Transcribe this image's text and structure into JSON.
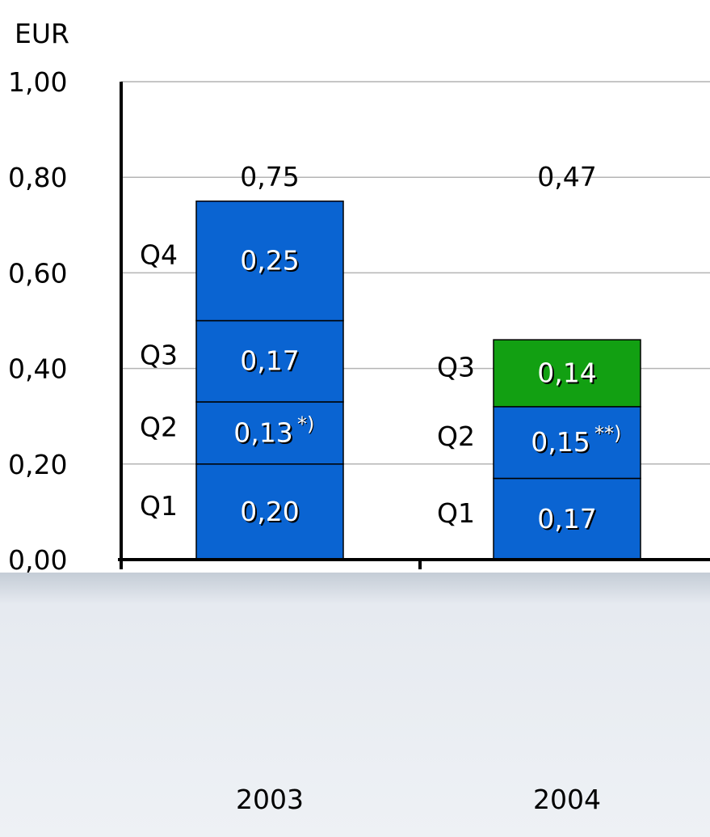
{
  "chart_data": {
    "type": "bar",
    "stacked": true,
    "unit_label": "EUR",
    "ylim": [
      0,
      1.0
    ],
    "y_ticks": [
      "0,00",
      "0,20",
      "0,40",
      "0,60",
      "0,80",
      "1,00"
    ],
    "y_tick_values": [
      0,
      0.2,
      0.4,
      0.6,
      0.8,
      1.0
    ],
    "grid": true,
    "categories": [
      "2003",
      "2004"
    ],
    "totals": [
      "0,75",
      "0,47"
    ],
    "stacks": [
      {
        "category": "2003",
        "segments": [
          {
            "quarter": "Q1",
            "value": 0.2,
            "label": "0,20",
            "note": "",
            "color": "#0a64d2"
          },
          {
            "quarter": "Q2",
            "value": 0.13,
            "label": "0,13",
            "note": "*)",
            "color": "#0a64d2"
          },
          {
            "quarter": "Q3",
            "value": 0.17,
            "label": "0,17",
            "note": "",
            "color": "#0a64d2"
          },
          {
            "quarter": "Q4",
            "value": 0.25,
            "label": "0,25",
            "note": "",
            "color": "#0a64d2"
          }
        ]
      },
      {
        "category": "2004",
        "segments": [
          {
            "quarter": "Q1",
            "value": 0.17,
            "label": "0,17",
            "note": "",
            "color": "#0a64d2"
          },
          {
            "quarter": "Q2",
            "value": 0.15,
            "label": "0,15",
            "note": "**)",
            "color": "#0a64d2"
          },
          {
            "quarter": "Q3",
            "value": 0.14,
            "label": "0,14",
            "note": "",
            "color": "#12a012"
          }
        ]
      }
    ],
    "colors": {
      "bar_blue": "#0a64d2",
      "bar_green": "#12a012",
      "grid": "#b4b4b4",
      "footer_band": "#dde3eb"
    }
  }
}
